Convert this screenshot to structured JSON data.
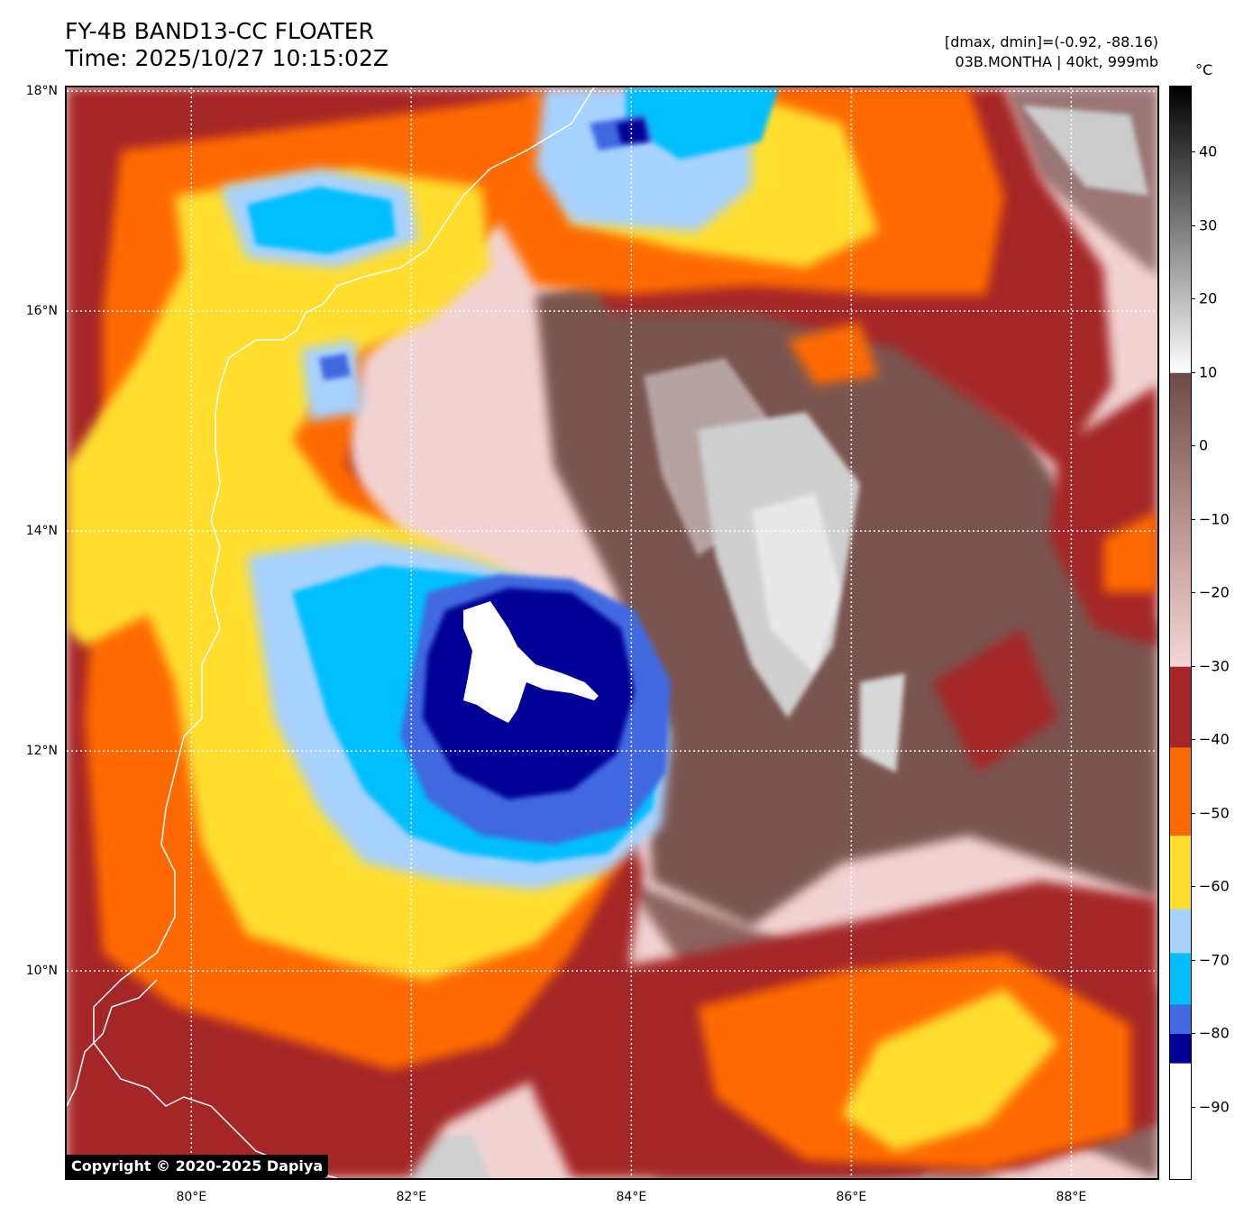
{
  "header": {
    "title": "FY-4B BAND13-CC FLOATER",
    "time": "Time: 2025/10/27 10:15:02Z",
    "range": "[dmax, dmin]=(-0.92, -88.16)",
    "storm": "03B.MONTHA | 40kt, 999mb"
  },
  "map": {
    "lat_labels": [
      "18°N",
      "16°N",
      "14°N",
      "12°N",
      "10°N"
    ],
    "lon_labels": [
      "80°E",
      "82°E",
      "84°E",
      "86°E",
      "88°E"
    ],
    "lat_values": [
      18,
      16,
      14,
      12,
      10
    ],
    "lon_values": [
      80,
      82,
      84,
      86,
      88
    ],
    "lat_range": [
      8.1,
      18.05
    ],
    "lon_range": [
      78.85,
      88.8
    ],
    "grid": true,
    "copyright": "Copyright © 2020-2025 Dapiya"
  },
  "colorbar": {
    "unit": "°C",
    "range": [
      -100,
      49
    ],
    "labels": [
      "40",
      "30",
      "20",
      "10",
      "0",
      "−10",
      "−20",
      "−30",
      "−40",
      "−50",
      "−60",
      "−70",
      "−80",
      "−90"
    ],
    "values": [
      40,
      30,
      20,
      10,
      0,
      -10,
      -20,
      -30,
      -40,
      -50,
      -60,
      -70,
      -80,
      -90
    ],
    "bands": [
      {
        "from": 49,
        "to": 10,
        "kind": "gradient",
        "colors": [
          "#000000",
          "#555555",
          "#aaaaaa",
          "#ffffff"
        ]
      },
      {
        "from": 10,
        "to": -30,
        "kind": "gradient",
        "colors": [
          "#6e4a46",
          "#a07a76",
          "#cfa9a8",
          "#f4d6d6"
        ]
      },
      {
        "from": -30,
        "to": -41,
        "color": "#a52626"
      },
      {
        "from": -41,
        "to": -53,
        "color": "#ff6a00"
      },
      {
        "from": -53,
        "to": -63,
        "color": "#ffde2e"
      },
      {
        "from": -63,
        "to": -69,
        "color": "#a8d2ff"
      },
      {
        "from": -69,
        "to": -76,
        "color": "#00bfff"
      },
      {
        "from": -76,
        "to": -80,
        "color": "#4169e1"
      },
      {
        "from": -80,
        "to": -84,
        "color": "#000096"
      },
      {
        "from": -84,
        "to": -100,
        "color": "#ffffff"
      }
    ]
  }
}
